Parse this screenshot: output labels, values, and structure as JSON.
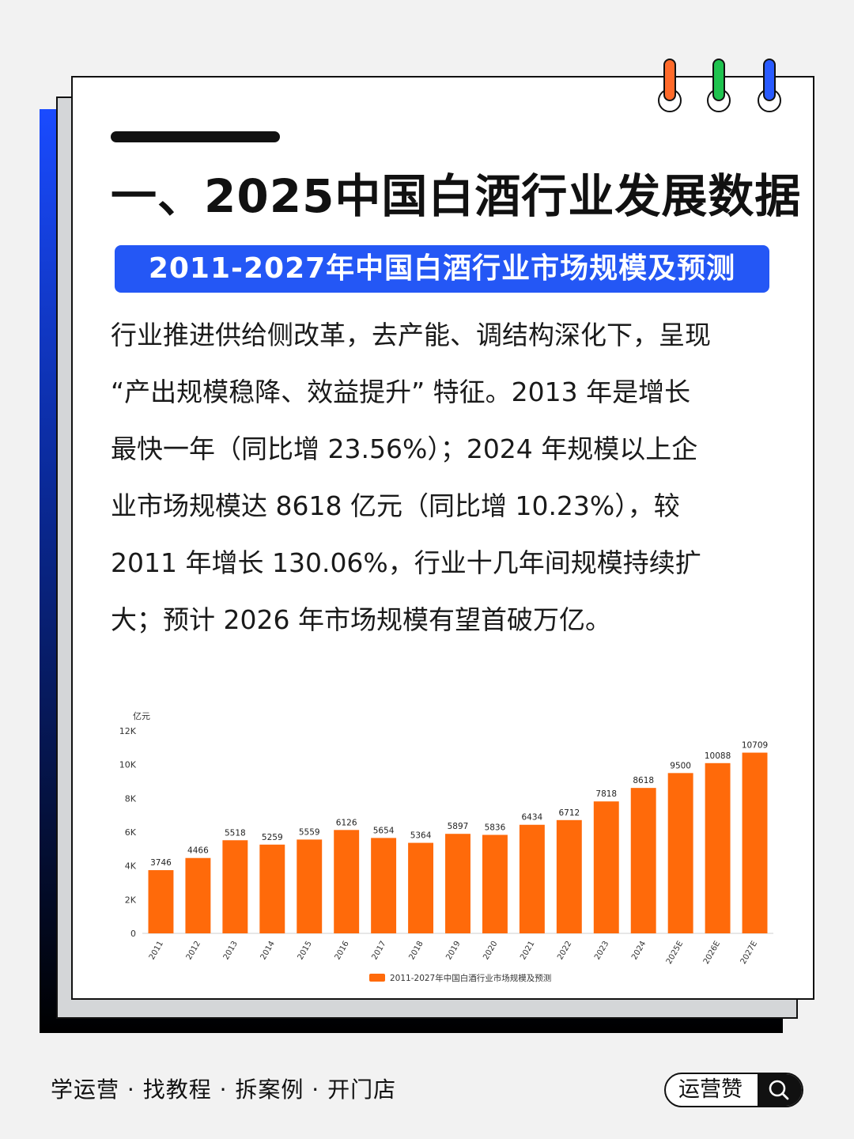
{
  "title": "一、2025中国白酒行业发展数据",
  "subtitle": "2011-2027年中国白酒行业市场规模及预测",
  "paragraph_lines": [
    "行业推进供给侧改革，去产能、调结构深化下，呈现",
    "“产出规模稳降、效益提升” 特征。2013 年是增长",
    "最快一年（同比增 23.56%）；2024 年规模以上企",
    "业市场规模达 8618 亿元（同比增 10.23%），较",
    "2011 年增长 130.06%，行业十几年间规模持续扩",
    "大；预计 2026 年市场规模有望首破万亿。"
  ],
  "footer": {
    "tagline": "学运营 · 找教程 · 拆案例 · 开门店",
    "brand": "运营赞"
  },
  "colors": {
    "bar": "#ff6a0a",
    "banner": "#2457f5",
    "clip_orange": "#ff6a2a",
    "clip_green": "#1fc34f",
    "clip_blue": "#2a5bff"
  },
  "chart_data": {
    "type": "bar",
    "unit_label": "亿元",
    "categories": [
      "2011",
      "2012",
      "2013",
      "2014",
      "2015",
      "2016",
      "2017",
      "2018",
      "2019",
      "2020",
      "2021",
      "2022",
      "2023",
      "2024",
      "2025E",
      "2026E",
      "2027E"
    ],
    "series": [
      {
        "name": "2011-2027年中国白酒行业市场规模及预测",
        "values": [
          3746,
          4466,
          5518,
          5259,
          5559,
          6126,
          5654,
          5364,
          5897,
          5836,
          6434,
          6712,
          7818,
          8618,
          9500,
          10088,
          10709
        ]
      }
    ],
    "y_ticks": [
      "0",
      "2K",
      "4K",
      "6K",
      "8K",
      "10K",
      "12K"
    ],
    "ylim": [
      0,
      12000
    ],
    "grid": false,
    "legend_position": "bottom-center"
  }
}
